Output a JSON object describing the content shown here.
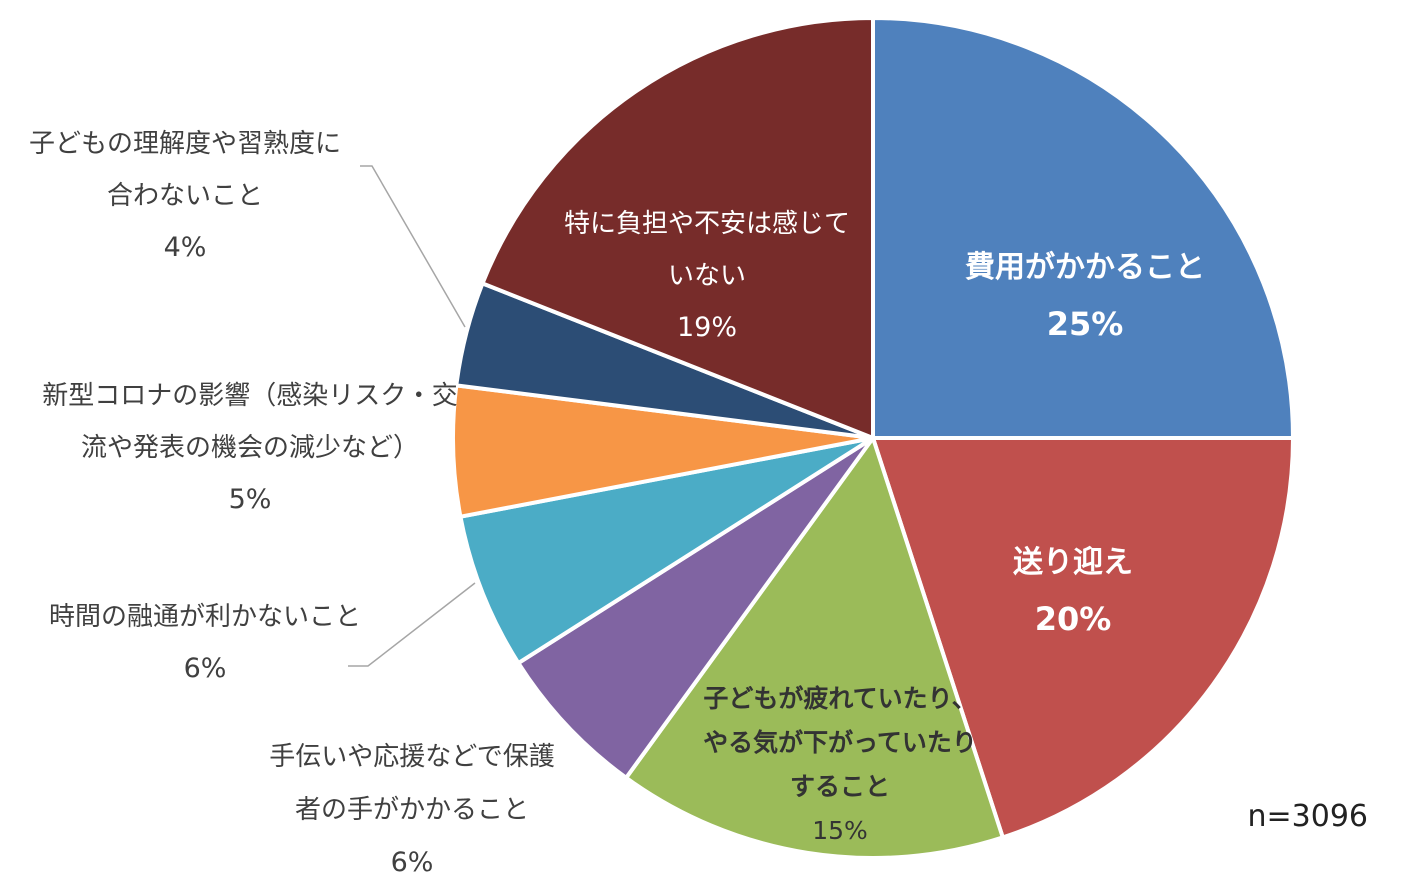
{
  "chart_data": {
    "type": "pie",
    "slices": [
      {
        "lines": [
          "費用がかかること"
        ],
        "value": 25,
        "pct_label": "25%",
        "color": "#4f81bd"
      },
      {
        "lines": [
          "送り迎え"
        ],
        "value": 20,
        "pct_label": "20%",
        "color": "#c0504d"
      },
      {
        "lines": [
          "子どもが疲れていたり、",
          "やる気が下がっていたり",
          "すること"
        ],
        "value": 15,
        "pct_label": "15%",
        "color": "#9bbb59"
      },
      {
        "lines": [
          "手伝いや応援などで保護",
          "者の手がかかること"
        ],
        "value": 6,
        "pct_label": "6%",
        "color": "#8064a2"
      },
      {
        "lines": [
          "時間の融通が利かないこと"
        ],
        "value": 6,
        "pct_label": "6%",
        "color": "#4bacc6"
      },
      {
        "lines": [
          "新型コロナの影響（感染リスク・交",
          "流や発表の機会の減少など）"
        ],
        "value": 5,
        "pct_label": "5%",
        "color": "#f79646"
      },
      {
        "lines": [
          "子どもの理解度や習熟度に",
          "合わないこと"
        ],
        "value": 4,
        "pct_label": "4%",
        "color": "#2c4d75"
      },
      {
        "lines": [
          "特に負担や不安は感じて",
          "いない"
        ],
        "value": 19,
        "pct_label": "19%",
        "color": "#772c2a"
      }
    ],
    "sample_size": "n=3096"
  }
}
